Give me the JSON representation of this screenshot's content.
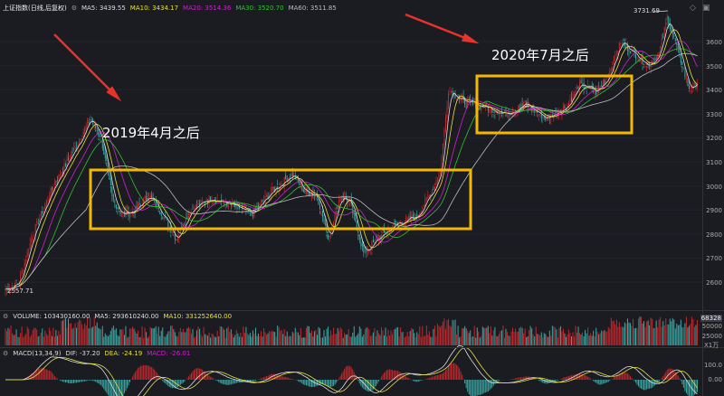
{
  "header": {
    "index_name": "上证指数(日线,后复权)",
    "settings_icon": "gear-icon",
    "ma": [
      {
        "label": "MA5: 3439.55",
        "color": "#dddddd"
      },
      {
        "label": "MA10: 3434.17",
        "color": "#e5e03a"
      },
      {
        "label": "MA20: 3514.36",
        "color": "#d020d0"
      },
      {
        "label": "MA30: 3520.70",
        "color": "#30c030"
      },
      {
        "label": "MA60: 3511.85",
        "color": "#bbbbbb"
      }
    ]
  },
  "toolbar": {
    "diamond_icon": "diamond-icon",
    "window_icon": "window-icon"
  },
  "annotations": {
    "left": "2019年4月之后",
    "right": "2020年7月之后",
    "high_label": "3731.69",
    "low_label": "2557.71"
  },
  "price_axis": [
    "3600",
    "3500",
    "3400",
    "3300",
    "3200",
    "3100",
    "3000",
    "2900",
    "2800",
    "2700",
    "2600"
  ],
  "volume": {
    "legend": [
      {
        "label": "VOLUME: 103430160.00",
        "color": "#dddddd"
      },
      {
        "label": "MA5: 293610240.00",
        "color": "#dddddd"
      },
      {
        "label": "MA10: 331252640.00",
        "color": "#e5e03a"
      }
    ],
    "axis": {
      "current": "68328",
      "t1": "50000",
      "t2": "25000",
      "unit": "X1万"
    }
  },
  "macd": {
    "legend": [
      {
        "label": "MACD(13,34,9)",
        "color": "#dddddd"
      },
      {
        "label": "DIF: -37.20",
        "color": "#dddddd"
      },
      {
        "label": "DEA: -24.19",
        "color": "#e5e03a"
      },
      {
        "label": "MACD: -26.01",
        "color": "#d020d0"
      }
    ],
    "axis": [
      "100.0",
      "0.00"
    ]
  },
  "colors": {
    "up": "#c0282c",
    "down": "#3aa8a4",
    "box": "#f5b800",
    "arrow": "#e8322a"
  },
  "chart_data": {
    "type": "candlestick",
    "ylim": [
      2550,
      3750
    ],
    "key_closes": [
      [
        0,
        2570
      ],
      [
        10,
        2600
      ],
      [
        20,
        2800
      ],
      [
        35,
        3000
      ],
      [
        50,
        3150
      ],
      [
        62,
        3280
      ],
      [
        70,
        3200
      ],
      [
        78,
        2950
      ],
      [
        85,
        2880
      ],
      [
        95,
        2900
      ],
      [
        105,
        2960
      ],
      [
        115,
        2880
      ],
      [
        125,
        2780
      ],
      [
        135,
        2900
      ],
      [
        150,
        2950
      ],
      [
        165,
        2920
      ],
      [
        180,
        2880
      ],
      [
        195,
        2980
      ],
      [
        210,
        3050
      ],
      [
        218,
        2980
      ],
      [
        228,
        2960
      ],
      [
        236,
        2780
      ],
      [
        245,
        2960
      ],
      [
        252,
        2930
      ],
      [
        262,
        2720
      ],
      [
        272,
        2780
      ],
      [
        285,
        2840
      ],
      [
        300,
        2870
      ],
      [
        312,
        2980
      ],
      [
        318,
        3060
      ],
      [
        324,
        3400
      ],
      [
        335,
        3350
      ],
      [
        350,
        3330
      ],
      [
        365,
        3300
      ],
      [
        380,
        3340
      ],
      [
        395,
        3280
      ],
      [
        410,
        3330
      ],
      [
        420,
        3420
      ],
      [
        432,
        3390
      ],
      [
        440,
        3450
      ],
      [
        450,
        3600
      ],
      [
        460,
        3550
      ],
      [
        470,
        3500
      ],
      [
        478,
        3550
      ],
      [
        484,
        3700
      ],
      [
        492,
        3560
      ],
      [
        500,
        3400
      ],
      [
        506,
        3430
      ]
    ]
  }
}
